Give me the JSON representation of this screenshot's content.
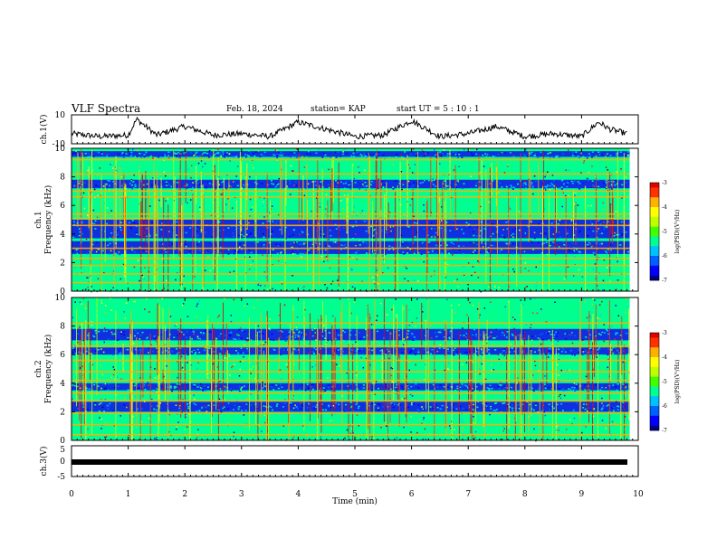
{
  "header": {
    "title": "VLF Spectra",
    "date": "Feb. 18, 2024",
    "station": "station= KAP",
    "start_ut": "start  UT  =   5  : 10 : 1"
  },
  "chart_data": [
    {
      "type": "line",
      "panel": "ch1_waveform",
      "ylabel": "ch.1(V)",
      "ylim": [
        -10,
        10
      ],
      "yticks": [
        "10",
        "-10"
      ],
      "xlim": [
        0,
        10
      ],
      "x": [
        0,
        0.5,
        1.0,
        1.15,
        1.5,
        2.0,
        2.5,
        3.0,
        3.5,
        4.0,
        4.5,
        5.0,
        5.5,
        6.0,
        6.5,
        7.0,
        7.5,
        8.0,
        8.5,
        9.0,
        9.3,
        9.5,
        9.8
      ],
      "values": [
        -3,
        -5,
        -4,
        7,
        -4,
        2,
        -4,
        -3,
        -5,
        5,
        0,
        -5,
        -4,
        6,
        -5,
        -3,
        2,
        -5,
        -3,
        -5,
        5,
        0,
        -3
      ],
      "color": "#000000"
    },
    {
      "type": "heatmap",
      "panel": "ch1_spectrogram",
      "ylabel": [
        "ch.1",
        "Frequency  (kHz)"
      ],
      "yticks": [
        "10",
        "8",
        "6",
        "4",
        "2",
        "0"
      ],
      "ylim": [
        0,
        10
      ],
      "xlim": [
        0,
        10
      ],
      "x": [
        0,
        9.85
      ],
      "colorbar": {
        "label": "log(PSD)(V²/Hz)",
        "ticks": [
          "-3",
          "-4",
          "-5",
          "-6",
          "-7"
        ],
        "range": [
          -7,
          -3
        ]
      },
      "bands_khz": [
        0.6,
        1.2,
        1.8,
        2.3,
        3.0,
        4.6,
        5.1,
        5.4,
        6.6,
        7.0,
        8.2,
        9.2
      ],
      "quiet_bands_khz": [
        [
          2.6,
          3.5
        ],
        [
          3.7,
          5.0
        ],
        [
          7.2,
          7.8
        ],
        [
          9.4,
          9.8
        ]
      ]
    },
    {
      "type": "heatmap",
      "panel": "ch2_spectrogram",
      "ylabel": [
        "ch.2",
        "Frequency  (kHz)"
      ],
      "yticks": [
        "10",
        "8",
        "6",
        "4",
        "2",
        "0"
      ],
      "ylim": [
        0,
        10
      ],
      "xlim": [
        0,
        10
      ],
      "x": [
        0,
        9.85
      ],
      "colorbar": {
        "label": "log(PSD)(V²/Hz)",
        "ticks": [
          "-3",
          "-4",
          "-5",
          "-6",
          "-7"
        ],
        "range": [
          -7,
          -3
        ]
      },
      "bands_khz": [
        0.4,
        1.1,
        1.9,
        2.8,
        3.3,
        4.2,
        4.8,
        5.6,
        6.6,
        8.2
      ],
      "quiet_bands_khz": [
        [
          2.0,
          2.7
        ],
        [
          3.5,
          4.0
        ],
        [
          6.0,
          6.5
        ],
        [
          7.0,
          7.8
        ]
      ]
    },
    {
      "type": "line",
      "panel": "ch3_waveform",
      "ylabel": "ch.3(V)",
      "ylim": [
        -5,
        5
      ],
      "yticks": [
        "5",
        "0",
        "-5"
      ],
      "xlim": [
        0,
        10
      ],
      "x": [
        0,
        9.85
      ],
      "values": [
        0,
        0
      ],
      "color": "#000000"
    }
  ],
  "xaxis": {
    "label": "Time  (min)",
    "ticks": [
      "0",
      "1",
      "2",
      "3",
      "4",
      "5",
      "6",
      "7",
      "8",
      "9",
      "10"
    ]
  },
  "colormap": [
    "#000080",
    "#0000ff",
    "#0060ff",
    "#00c0ff",
    "#00ff90",
    "#40ff00",
    "#c0ff00",
    "#ffff00",
    "#ffb000",
    "#ff3000",
    "#e00000"
  ]
}
